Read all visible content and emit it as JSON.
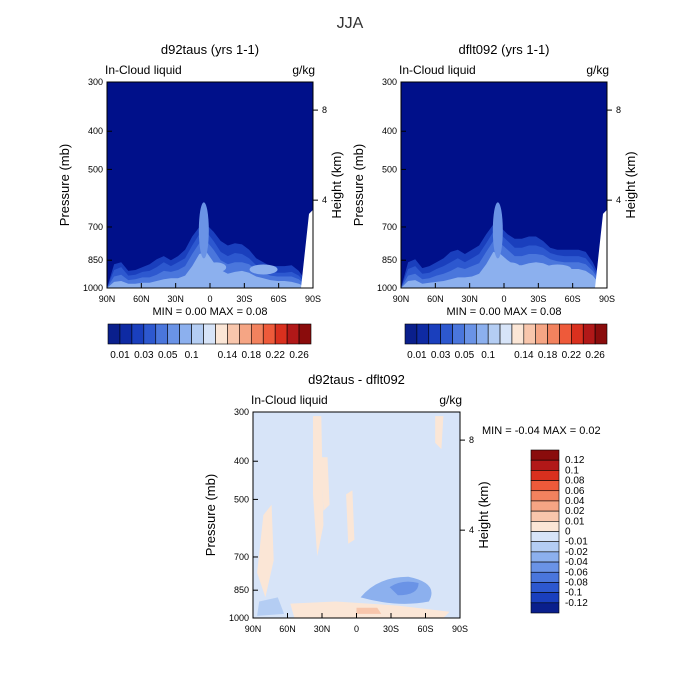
{
  "page_title": "JJA",
  "colors": {
    "positive": [
      "#fbe6d6",
      "#f8c6ac",
      "#f5a584",
      "#f2825e",
      "#ee5a3a",
      "#d9301e",
      "#b11818",
      "#8a0c0c"
    ],
    "negative": [
      "#d7e4f8",
      "#b4cdf3",
      "#8cb0ee",
      "#6a93e6",
      "#4a76dc",
      "#2d58cf",
      "#1a3fbd",
      "#0e2aa3",
      "#0a1f8c"
    ],
    "background_dark": "#00108a"
  },
  "chart_data": [
    {
      "type": "contour",
      "panel_id": "top-left",
      "title": "d92taus (yrs 1-1)",
      "left_label": "In-Cloud liquid",
      "right_label": "g/kg",
      "ylabel": "Pressure (mb)",
      "ylabel_right": "Height (km)",
      "x_ticks": [
        "90N",
        "60N",
        "30N",
        "0",
        "30S",
        "60S",
        "90S"
      ],
      "y_ticks": [
        "300",
        "400",
        "500",
        "700",
        "850",
        "1000"
      ],
      "y_ticks_right": [
        "8",
        "4"
      ],
      "stats": "MIN =    0.00   MAX =   0.08",
      "xlim": [
        90,
        -90
      ],
      "ylim": [
        1000,
        300
      ],
      "profiles": [
        {
          "level": 1,
          "p": [
            1000,
            870,
            860,
            905,
            900,
            885,
            870,
            845,
            830,
            850,
            830,
            800,
            740,
            700,
            690,
            720,
            760,
            780,
            770,
            775,
            800,
            840,
            860,
            880,
            880,
            880,
            875,
            905,
            960,
            1000
          ]
        },
        {
          "level": 2,
          "p": [
            1000,
            900,
            885,
            930,
            925,
            910,
            905,
            885,
            860,
            880,
            860,
            840,
            780,
            730,
            720,
            760,
            810,
            830,
            815,
            820,
            840,
            875,
            895,
            910,
            915,
            915,
            910,
            930,
            975,
            1000
          ]
        },
        {
          "level": 3,
          "p": [
            1000,
            935,
            925,
            955,
            950,
            940,
            940,
            925,
            905,
            910,
            900,
            880,
            820,
            770,
            760,
            800,
            850,
            870,
            860,
            860,
            870,
            900,
            915,
            930,
            935,
            935,
            935,
            950,
            985,
            1000
          ]
        },
        {
          "level": 4,
          "p": [
            1000,
            965,
            960,
            975,
            975,
            970,
            970,
            960,
            950,
            945,
            945,
            930,
            880,
            820,
            810,
            860,
            900,
            920,
            910,
            905,
            915,
            935,
            945,
            955,
            960,
            960,
            965,
            975,
            995,
            1000
          ]
        }
      ]
    },
    {
      "type": "contour",
      "panel_id": "top-right",
      "title": "dflt092 (yrs 1-1)",
      "left_label": "In-Cloud liquid",
      "right_label": "g/kg",
      "ylabel": "Pressure (mb)",
      "ylabel_right": "Height (km)",
      "x_ticks": [
        "90N",
        "60N",
        "30N",
        "0",
        "30S",
        "60S",
        "90S"
      ],
      "y_ticks": [
        "300",
        "400",
        "500",
        "700",
        "850",
        "1000"
      ],
      "y_ticks_right": [
        "8",
        "4"
      ],
      "stats": "MIN =    0.00   MAX =   0.08",
      "xlim": [
        90,
        -90
      ],
      "ylim": [
        1000,
        300
      ],
      "profiles": [
        {
          "level": 1,
          "p": [
            1000,
            860,
            845,
            890,
            880,
            860,
            840,
            810,
            800,
            820,
            800,
            780,
            730,
            690,
            700,
            730,
            750,
            750,
            740,
            740,
            760,
            790,
            800,
            800,
            800,
            800,
            810,
            860,
            940,
            1000
          ]
        },
        {
          "level": 2,
          "p": [
            1000,
            895,
            880,
            920,
            915,
            895,
            880,
            860,
            840,
            860,
            840,
            820,
            770,
            720,
            730,
            760,
            790,
            790,
            780,
            780,
            790,
            815,
            825,
            830,
            830,
            830,
            840,
            885,
            955,
            1000
          ]
        },
        {
          "level": 3,
          "p": [
            1000,
            930,
            920,
            950,
            945,
            930,
            920,
            905,
            885,
            895,
            880,
            865,
            810,
            760,
            770,
            800,
            830,
            830,
            820,
            820,
            825,
            845,
            855,
            860,
            860,
            860,
            870,
            905,
            965,
            1000
          ]
        },
        {
          "level": 4,
          "p": [
            1000,
            960,
            955,
            975,
            970,
            965,
            960,
            950,
            940,
            940,
            935,
            920,
            870,
            810,
            820,
            850,
            875,
            875,
            865,
            860,
            865,
            880,
            890,
            895,
            895,
            895,
            905,
            930,
            980,
            1000
          ]
        }
      ]
    },
    {
      "type": "contour",
      "panel_id": "bottom",
      "title": "d92taus - dflt092",
      "left_label": "In-Cloud liquid",
      "right_label": "g/kg",
      "ylabel": "Pressure (mb)",
      "ylabel_right": "Height (km)",
      "x_ticks": [
        "90N",
        "60N",
        "30N",
        "0",
        "30S",
        "60S",
        "90S"
      ],
      "y_ticks": [
        "300",
        "400",
        "500",
        "700",
        "850",
        "1000"
      ],
      "y_ticks_right": [
        "8",
        "4"
      ],
      "stats": "MIN =    -0.04   MAX =    0.02",
      "xlim": [
        90,
        -90
      ],
      "ylim": [
        1000,
        300
      ]
    }
  ],
  "colorbar_top": {
    "labels": [
      "0.01",
      "0.03",
      "0.05",
      "0.1",
      "0.14",
      "0.18",
      "0.22",
      "0.26"
    ],
    "boxes": [
      "#0a1f8c",
      "#0e2aa3",
      "#1a3fbd",
      "#2d58cf",
      "#4a76dc",
      "#6a93e6",
      "#8cb0ee",
      "#b4cdf3",
      "#d7e4f8",
      "#fbe6d6",
      "#f8c6ac",
      "#f5a584",
      "#f2825e",
      "#ee5a3a",
      "#d9301e",
      "#b11818",
      "#8a0c0c"
    ]
  },
  "colorbar_bottom": {
    "labels": [
      "0.12",
      "0.1",
      "0.08",
      "0.06",
      "0.04",
      "0.02",
      "0.01",
      "0",
      "-0.01",
      "-0.02",
      "-0.04",
      "-0.06",
      "-0.08",
      "-0.1",
      "-0.12"
    ],
    "boxes": [
      "#8a0c0c",
      "#b11818",
      "#d9301e",
      "#ee5a3a",
      "#f2825e",
      "#f5a584",
      "#f8c6ac",
      "#fbe6d6",
      "#d7e4f8",
      "#b4cdf3",
      "#8cb0ee",
      "#6a93e6",
      "#4a76dc",
      "#2d58cf",
      "#1a3fbd",
      "#0a1f8c"
    ]
  }
}
